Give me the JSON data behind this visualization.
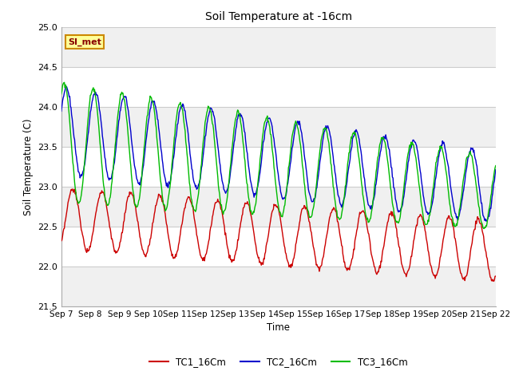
{
  "title": "Soil Temperature at -16cm",
  "xlabel": "Time",
  "ylabel": "Soil Temperature (C)",
  "ylim": [
    21.5,
    25.0
  ],
  "yticks": [
    21.5,
    22.0,
    22.5,
    23.0,
    23.5,
    24.0,
    24.5,
    25.0
  ],
  "x_labels": [
    "Sep 7",
    "Sep 8",
    "Sep 9",
    "Sep 10",
    "Sep 11",
    "Sep 12",
    "Sep 13",
    "Sep 14",
    "Sep 15",
    "Sep 16",
    "Sep 17",
    "Sep 18",
    "Sep 19",
    "Sep 20",
    "Sep 21",
    "Sep 22"
  ],
  "colors": {
    "TC1": "#cc0000",
    "TC2": "#0000cc",
    "TC3": "#00bb00"
  },
  "legend_labels": [
    "TC1_16Cm",
    "TC2_16Cm",
    "TC3_16Cm"
  ],
  "annotation_text": "SI_met",
  "annotation_bg": "#ffff99",
  "annotation_border": "#cc8800",
  "band_colors": [
    "#f0f0f0",
    "#ffffff"
  ],
  "bg_color": "#ffffff",
  "plot_bg": "#f8f8f8",
  "n_points": 720,
  "days": 15
}
